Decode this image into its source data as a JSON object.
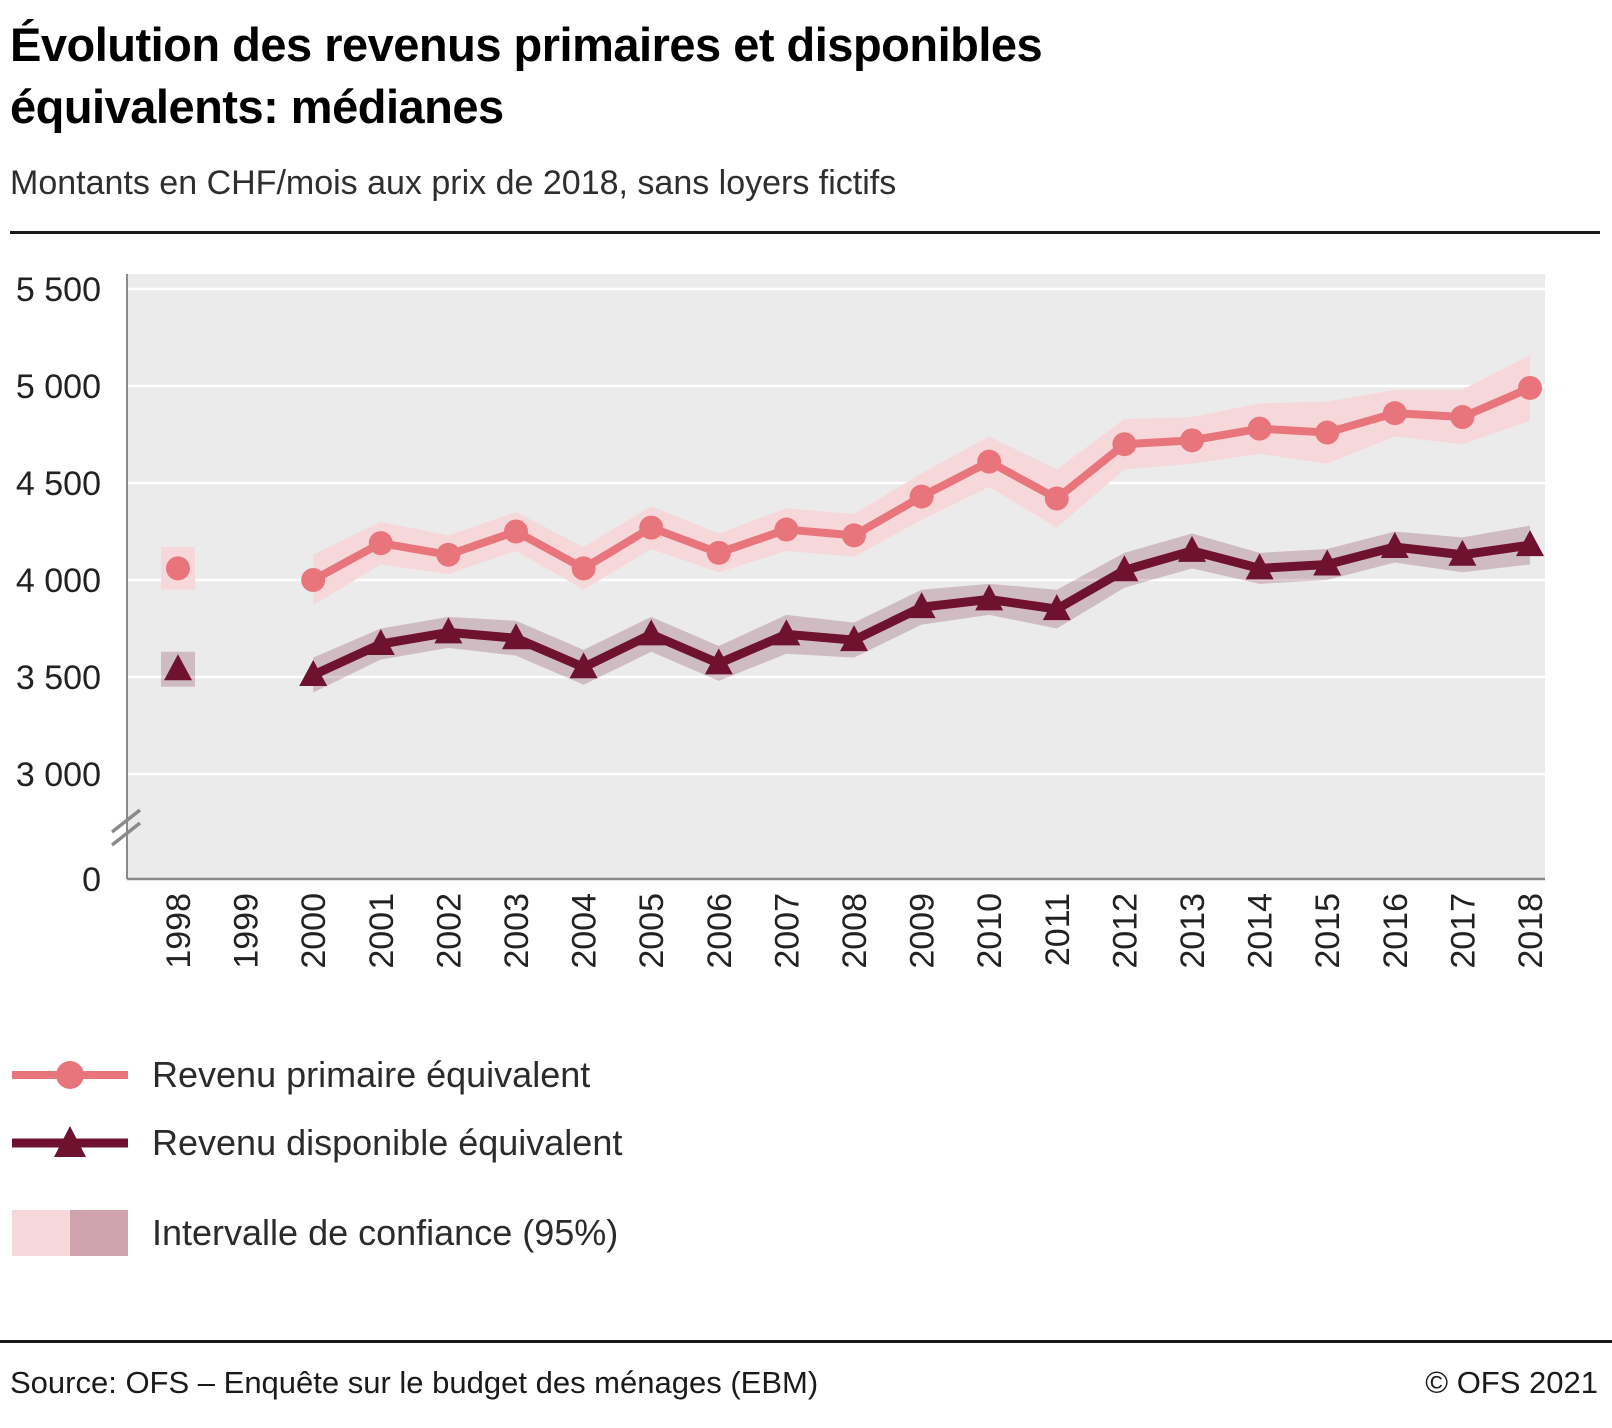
{
  "header": {
    "title_lines": [
      "Évolution des revenus primaires et disponibles",
      "équivalents: médianes"
    ],
    "subtitle": "Montants en CHF/mois aux prix de 2018, sans loyers fictifs"
  },
  "chart_data": {
    "type": "line",
    "title": "Évolution des revenus primaires et disponibles équivalents: médianes",
    "subtitle": "Montants en CHF/mois aux prix de 2018, sans loyers fictifs",
    "unit": "CHF/mois aux prix de 2018",
    "years": [
      1998,
      1999,
      2000,
      2001,
      2002,
      2003,
      2004,
      2005,
      2006,
      2007,
      2008,
      2009,
      2010,
      2011,
      2012,
      2013,
      2014,
      2015,
      2016,
      2017,
      2018
    ],
    "x_tick_labels": [
      "1998",
      "1999",
      "2000",
      "2001",
      "2002",
      "2003",
      "2004",
      "2005",
      "2006",
      "2007",
      "2008",
      "2009",
      "2010",
      "2011",
      "2012",
      "2013",
      "2014",
      "2015",
      "2016",
      "2017",
      "2018"
    ],
    "y_ticks": [
      5500,
      5000,
      4500,
      4000,
      3500,
      3000,
      0
    ],
    "y_tick_labels": [
      "5 500",
      "5 000",
      "4 500",
      "4 000",
      "3 500",
      "3 000",
      "0"
    ],
    "axis_break_between": [
      0,
      3000
    ],
    "grid": true,
    "plot_bg": "#ebebeb",
    "gridline_color": "#ffffff",
    "series": [
      {
        "name": "Revenu primaire équivalent",
        "marker": "circle",
        "color": "#e8757c",
        "band_color": "#f6d8da",
        "values": [
          4060,
          null,
          4000,
          4190,
          4130,
          4250,
          4060,
          4270,
          4140,
          4260,
          4230,
          4430,
          4610,
          4420,
          4700,
          4720,
          4780,
          4760,
          4860,
          4840,
          4990
        ],
        "lower": [
          3950,
          null,
          3870,
          4080,
          4030,
          4150,
          3950,
          4160,
          4040,
          4150,
          4120,
          4310,
          4480,
          4270,
          4570,
          4600,
          4650,
          4600,
          4740,
          4700,
          4820
        ],
        "upper": [
          4170,
          null,
          4130,
          4300,
          4230,
          4350,
          4170,
          4380,
          4240,
          4370,
          4340,
          4550,
          4740,
          4570,
          4830,
          4840,
          4910,
          4920,
          4980,
          4980,
          5160
        ]
      },
      {
        "name": "Revenu disponible équivalent",
        "marker": "triangle",
        "color": "#6e1230",
        "band_color": "rgba(110,18,48,0.22)",
        "values": [
          3540,
          null,
          3510,
          3670,
          3730,
          3700,
          3550,
          3720,
          3570,
          3720,
          3690,
          3860,
          3900,
          3850,
          4050,
          4150,
          4060,
          4080,
          4170,
          4130,
          4180
        ],
        "lower": [
          3450,
          null,
          3420,
          3590,
          3650,
          3610,
          3460,
          3630,
          3480,
          3620,
          3600,
          3770,
          3820,
          3750,
          3960,
          4060,
          3980,
          4000,
          4090,
          4040,
          4080
        ],
        "upper": [
          3630,
          null,
          3600,
          3750,
          3810,
          3790,
          3640,
          3810,
          3660,
          3820,
          3780,
          3950,
          3980,
          3950,
          4140,
          4240,
          4140,
          4160,
          4250,
          4220,
          4280
        ]
      }
    ],
    "legend_position": "below"
  },
  "legend": {
    "ci_label": "Intervalle de confiance (95%)",
    "ci_light": "#f6d8da",
    "ci_dark": "#cfa3ad"
  },
  "footer": {
    "source": "Source: OFS – Enquête sur le budget des ménages (EBM)",
    "copyright": "© OFS 2021"
  }
}
